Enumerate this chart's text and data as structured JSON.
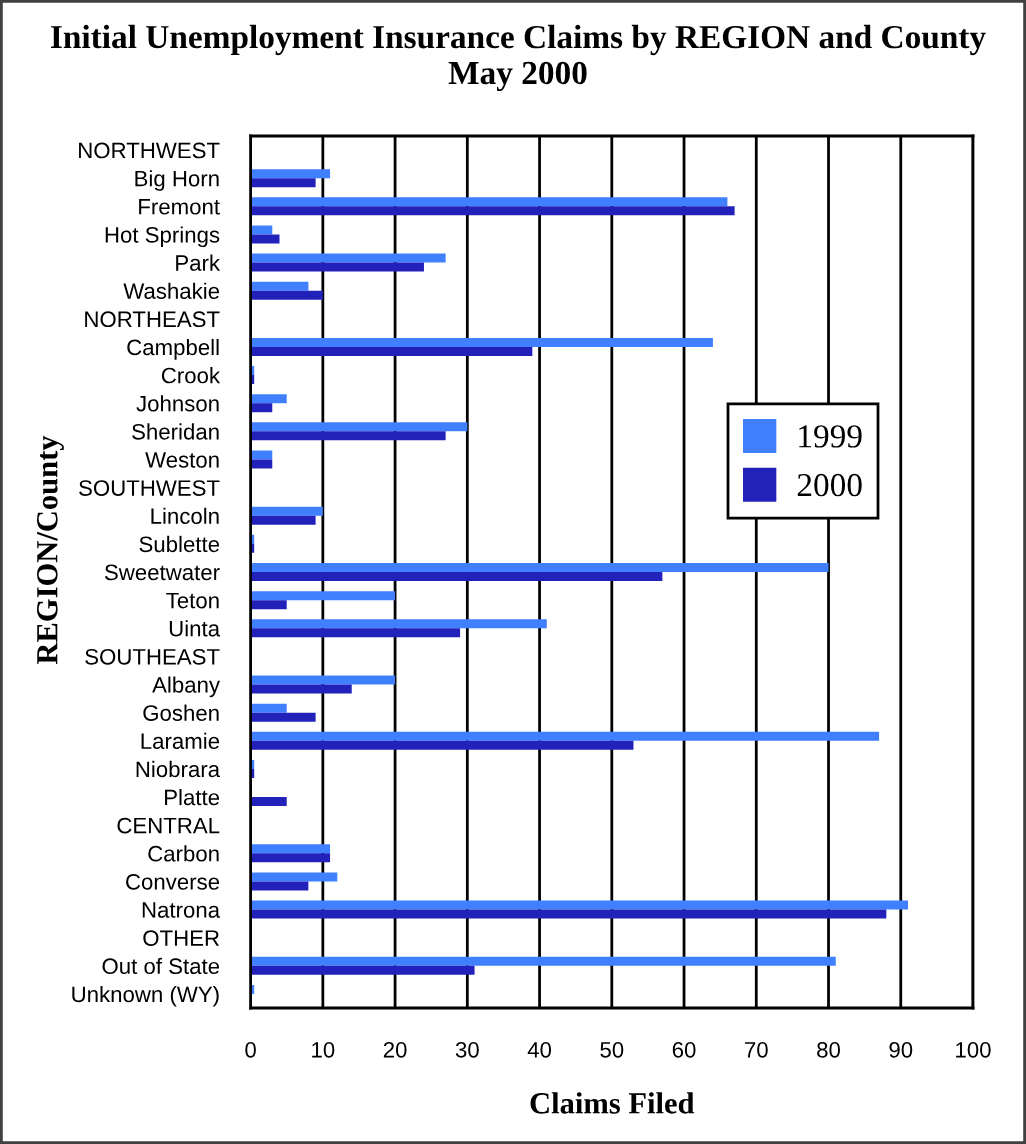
{
  "chart_data": {
    "type": "bar",
    "orientation": "horizontal",
    "title": "Initial Unemployment Insurance Claims by REGION and County",
    "subtitle": "May 2000",
    "xlabel": "Claims Filed",
    "ylabel": "REGION/County",
    "categories": [
      "NORTHWEST",
      "Big Horn",
      "Fremont",
      "Hot Springs",
      "Park",
      "Washakie",
      "NORTHEAST",
      "Campbell",
      "Crook",
      "Johnson",
      "Sheridan",
      "Weston",
      "SOUTHWEST",
      "Lincoln",
      "Sublette",
      "Sweetwater",
      "Teton",
      "Uinta",
      "SOUTHEAST",
      "Albany",
      "Goshen",
      "Laramie",
      "Niobrara",
      "Platte",
      "CENTRAL",
      "Carbon",
      "Converse",
      "Natrona",
      "OTHER",
      "Out of State",
      "Unknown (WY)"
    ],
    "series": [
      {
        "name": "1999",
        "color": "#4080ff",
        "values": [
          null,
          11,
          66,
          3,
          27,
          8,
          null,
          64,
          0.5,
          5,
          30,
          3,
          null,
          10,
          0.5,
          80,
          20,
          41,
          null,
          20,
          5,
          87,
          0.5,
          0,
          null,
          11,
          12,
          91,
          null,
          81,
          0.5
        ]
      },
      {
        "name": "2000",
        "color": "#2222bb",
        "values": [
          null,
          9,
          67,
          4,
          24,
          10,
          null,
          39,
          0.5,
          3,
          27,
          3,
          null,
          9,
          0.5,
          57,
          5,
          29,
          null,
          14,
          9,
          53,
          0.5,
          5,
          null,
          11,
          8,
          88,
          null,
          31,
          0
        ]
      }
    ],
    "xlim": [
      0,
      100
    ],
    "xticks": [
      0,
      10,
      20,
      30,
      40,
      50,
      60,
      70,
      80,
      90,
      100
    ],
    "grid": "x",
    "legend": "right"
  }
}
